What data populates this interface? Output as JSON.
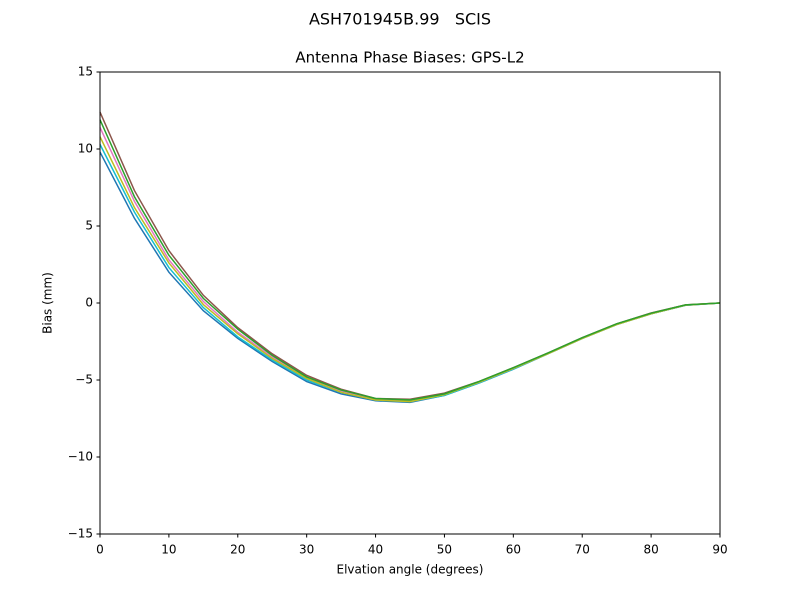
{
  "chart_data": {
    "type": "line",
    "title": "ASH701945B.99   SCIS",
    "subtitle": "Antenna Phase Biases: GPS-L2",
    "x_label": "Elvation angle (degrees)",
    "y_label": "Bias (mm)",
    "x": [
      0,
      5,
      10,
      15,
      20,
      25,
      30,
      35,
      40,
      45,
      50,
      55,
      60,
      65,
      70,
      75,
      80,
      85,
      90
    ],
    "series": [
      {
        "color": "#1f77b4",
        "values": [
          9.8,
          5.5,
          2.0,
          -0.5,
          -2.3,
          -3.8,
          -5.1,
          -5.9,
          -6.35,
          -6.45,
          -6.0,
          -5.2,
          -4.3,
          -3.3,
          -2.3,
          -1.4,
          -0.7,
          -0.15,
          0
        ]
      },
      {
        "color": "#17becf",
        "values": [
          10.3,
          5.9,
          2.3,
          -0.3,
          -2.2,
          -3.7,
          -5.0,
          -5.8,
          -6.3,
          -6.4,
          -6.0,
          -5.2,
          -4.3,
          -3.3,
          -2.3,
          -1.4,
          -0.7,
          -0.15,
          0
        ]
      },
      {
        "color": "#e377c2",
        "values": [
          11.4,
          6.6,
          2.8,
          0.1,
          -1.9,
          -3.5,
          -4.9,
          -5.7,
          -6.25,
          -6.3,
          -5.9,
          -5.15,
          -4.25,
          -3.28,
          -2.28,
          -1.38,
          -0.68,
          -0.13,
          0
        ]
      },
      {
        "color": "#8c564b",
        "values": [
          12.4,
          7.3,
          3.4,
          0.5,
          -1.6,
          -3.3,
          -4.7,
          -5.6,
          -6.2,
          -6.25,
          -5.85,
          -5.1,
          -4.2,
          -3.25,
          -2.25,
          -1.35,
          -0.65,
          -0.12,
          0
        ]
      },
      {
        "color": "#bcbd22",
        "values": [
          10.8,
          6.2,
          2.6,
          -0.1,
          -2.0,
          -3.6,
          -4.9,
          -5.8,
          -6.3,
          -6.4,
          -5.95,
          -5.15,
          -4.25,
          -3.3,
          -2.3,
          -1.4,
          -0.7,
          -0.14,
          0
        ]
      },
      {
        "color": "#2ca02c",
        "values": [
          11.9,
          6.9,
          3.1,
          0.3,
          -1.7,
          -3.4,
          -4.8,
          -5.65,
          -6.2,
          -6.3,
          -5.9,
          -5.1,
          -4.2,
          -3.25,
          -2.25,
          -1.35,
          -0.66,
          -0.12,
          0
        ]
      }
    ],
    "xlim": [
      0,
      90
    ],
    "xticks": [
      0,
      10,
      20,
      30,
      40,
      50,
      60,
      70,
      80,
      90
    ],
    "ylim": [
      -15,
      15
    ],
    "yticks": [
      {
        "value": -15,
        "label": "−15"
      },
      {
        "value": -10,
        "label": "−10"
      },
      {
        "value": -5,
        "label": "−5"
      },
      0,
      5,
      10,
      15
    ],
    "grid": false
  }
}
